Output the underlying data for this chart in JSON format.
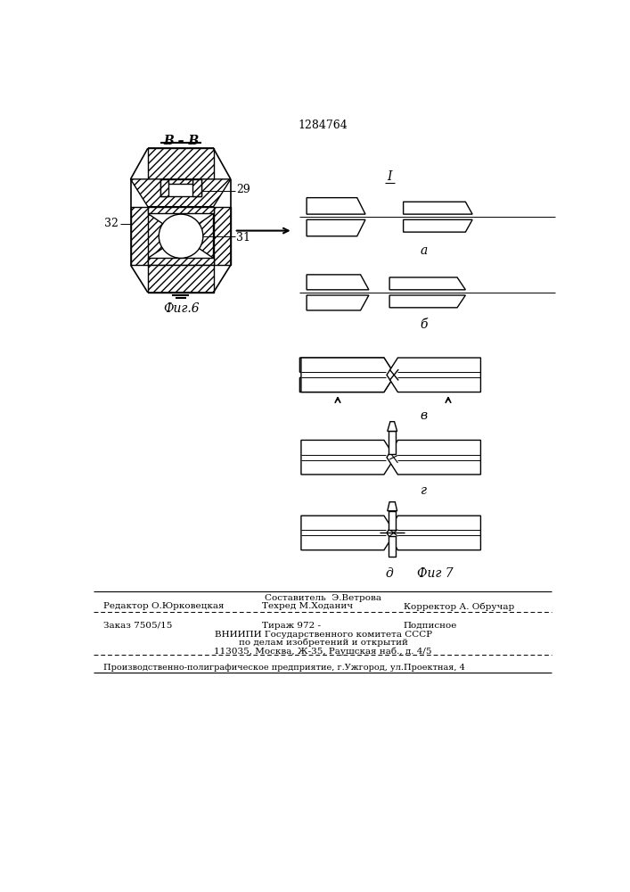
{
  "patent_number": "1284764",
  "bg_color": "#ffffff",
  "line_color": "#000000",
  "fig6_label": "Фиг.6",
  "fig7_label": "Фиг 7",
  "section_label": "B – B",
  "label_32": "32",
  "label_29": "29",
  "label_31": "31",
  "step_labels": [
    "a",
    "б",
    "в",
    "г",
    "д"
  ],
  "step_label_I": "I",
  "footer_составитель": "Составитель  Э.Ветрова",
  "footer_редактор": "Редактор О.Юрковецкая",
  "footer_техред": "Техред М.Ходанич",
  "footer_корректор": "Корректор А. Обручар",
  "footer_заказ": "Заказ 7505/15",
  "footer_тираж": "Тираж 972 -",
  "footer_подписное": "Подписное",
  "footer_вниипи": "ВНИИПИ Государственного комитета СССР",
  "footer_по": "по делам изобретений и открытий",
  "footer_адрес": "113035, Москва, Ж-35, Раушская наб., д. 4/5",
  "footer_произв": "Производственно-полиграфическое предприятие, г.Ужгород, ул.Проектная, 4"
}
